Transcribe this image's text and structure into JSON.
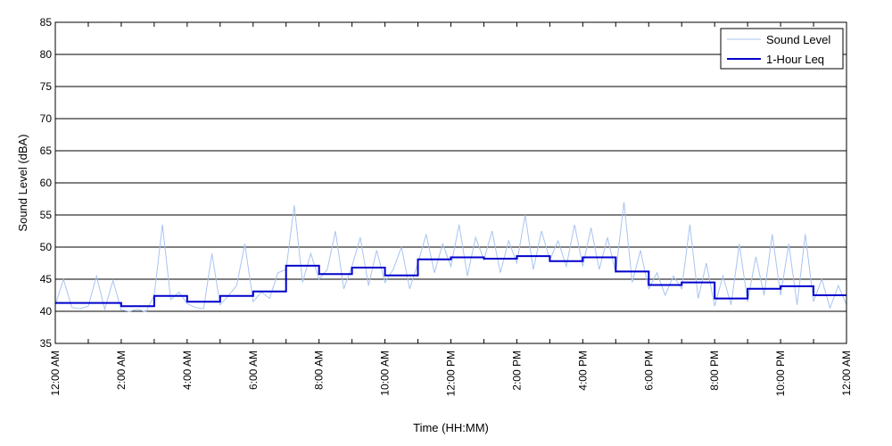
{
  "chart_data": {
    "type": "line",
    "title": "",
    "xlabel": "Time (HH:MM)",
    "ylabel": "Sound Level (dBA)",
    "ylim": [
      35,
      85
    ],
    "yticks": [
      35,
      40,
      45,
      50,
      55,
      60,
      65,
      70,
      75,
      80,
      85
    ],
    "xlim": [
      0,
      24
    ],
    "xtick_hours": [
      0,
      2,
      4,
      6,
      8,
      10,
      12,
      14,
      16,
      18,
      20,
      22,
      24
    ],
    "xtick_labels": [
      "12:00 AM",
      "2:00 AM",
      "4:00 AM",
      "6:00 AM",
      "8:00 AM",
      "10:00 AM",
      "12:00 PM",
      "2:00 PM",
      "4:00 PM",
      "6:00 PM",
      "8:00 PM",
      "10:00 PM",
      "12:00 AM"
    ],
    "grid": "horizontal",
    "legend_position": "top-right",
    "colors": {
      "sound_level": "#a8c4f0",
      "leq": "#0000cc",
      "grid": "#000000",
      "axis": "#000000"
    },
    "series": [
      {
        "name": "Sound Level",
        "style": "thin-light",
        "x": [
          0,
          0.25,
          0.5,
          0.75,
          1.0,
          1.25,
          1.5,
          1.75,
          2.0,
          2.25,
          2.5,
          2.75,
          3.0,
          3.25,
          3.5,
          3.75,
          4.0,
          4.25,
          4.5,
          4.75,
          5.0,
          5.25,
          5.5,
          5.75,
          6.0,
          6.25,
          6.5,
          6.75,
          7.0,
          7.25,
          7.5,
          7.75,
          8.0,
          8.25,
          8.5,
          8.75,
          9.0,
          9.25,
          9.5,
          9.75,
          10.0,
          10.25,
          10.5,
          10.75,
          11.0,
          11.25,
          11.5,
          11.75,
          12.0,
          12.25,
          12.5,
          12.75,
          13.0,
          13.25,
          13.5,
          13.75,
          14.0,
          14.25,
          14.5,
          14.75,
          15.0,
          15.25,
          15.5,
          15.75,
          16.0,
          16.25,
          16.5,
          16.75,
          17.0,
          17.25,
          17.5,
          17.75,
          18.0,
          18.25,
          18.5,
          18.75,
          19.0,
          19.25,
          19.5,
          19.75,
          20.0,
          20.25,
          20.5,
          20.75,
          21.0,
          21.25,
          21.5,
          21.75,
          22.0,
          22.25,
          22.5,
          22.75,
          23.0,
          23.25,
          23.5,
          23.75,
          24.0
        ],
        "y": [
          41.0,
          45.0,
          40.6,
          40.4,
          40.8,
          45.5,
          40.3,
          44.8,
          40.2,
          40.0,
          40.3,
          39.9,
          42.5,
          53.5,
          41.8,
          43.0,
          41.2,
          40.6,
          40.4,
          49.0,
          41.0,
          42.4,
          44.0,
          50.5,
          41.5,
          43.0,
          42.0,
          46.0,
          46.5,
          56.5,
          44.5,
          49.0,
          45.0,
          46.5,
          52.5,
          43.5,
          47.0,
          51.5,
          44.0,
          49.5,
          44.5,
          46.5,
          50.0,
          43.5,
          47.5,
          52.0,
          46.0,
          50.5,
          47.0,
          53.5,
          45.5,
          51.5,
          48.0,
          52.5,
          46.0,
          51.0,
          47.5,
          55.0,
          46.5,
          52.5,
          48.0,
          51.0,
          47.0,
          53.5,
          47.0,
          53.0,
          46.5,
          51.5,
          46.0,
          57.0,
          44.5,
          49.5,
          43.5,
          46.0,
          42.5,
          45.5,
          43.5,
          53.5,
          42.0,
          47.5,
          40.8,
          45.5,
          41.0,
          50.5,
          41.5,
          48.5,
          42.5,
          52.0,
          42.5,
          50.5,
          41.0,
          52.0,
          41.5,
          45.0,
          40.5,
          44.0,
          41.0
        ]
      },
      {
        "name": "1-Hour Leq",
        "style": "step",
        "hour_starts": [
          0,
          1,
          2,
          3,
          4,
          5,
          6,
          7,
          8,
          9,
          10,
          11,
          12,
          13,
          14,
          15,
          16,
          17,
          18,
          19,
          20,
          21,
          22,
          23
        ],
        "values": [
          41.3,
          41.3,
          40.8,
          42.4,
          41.5,
          42.4,
          43.1,
          47.1,
          45.8,
          46.8,
          45.6,
          48.1,
          48.4,
          48.2,
          48.6,
          47.8,
          48.4,
          46.2,
          44.1,
          44.5,
          42.0,
          43.5,
          43.9,
          42.5
        ]
      }
    ]
  }
}
